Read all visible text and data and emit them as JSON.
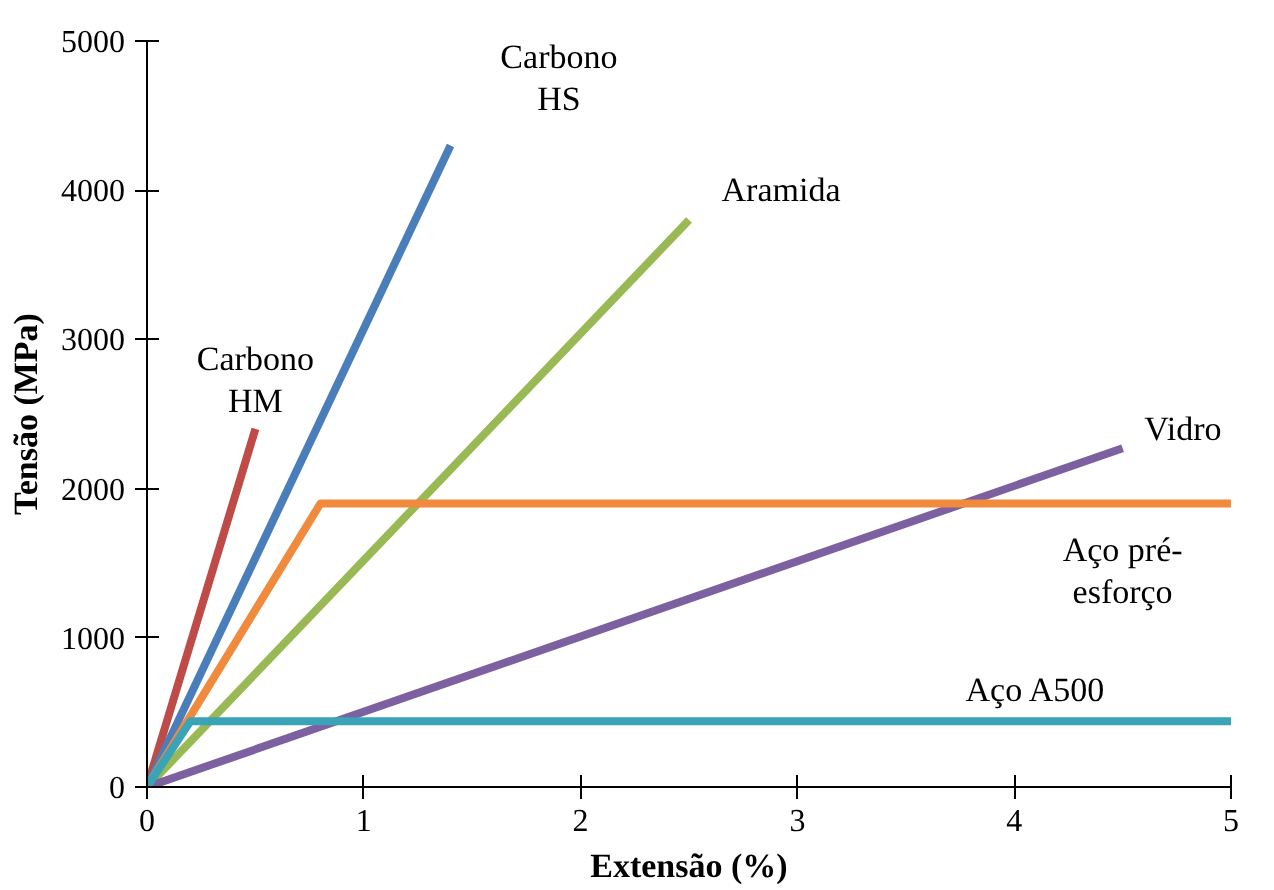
{
  "chart_data": {
    "type": "line",
    "xlabel": "Extensão (%)",
    "ylabel": "Tensão (MPa)",
    "xlim": [
      0,
      5
    ],
    "ylim": [
      0,
      5000
    ],
    "xticks": [
      0,
      1,
      2,
      3,
      4,
      5
    ],
    "yticks": [
      0,
      1000,
      2000,
      3000,
      4000,
      5000
    ],
    "grid": false,
    "legend": false,
    "marker": "none",
    "line_style": "solid",
    "series": [
      {
        "name": "Carbono\nHM",
        "color": "#be4b48",
        "x": [
          0,
          0.5
        ],
        "values": [
          0,
          2400
        ]
      },
      {
        "name": "Carbono\nHS",
        "color": "#4a7ebb",
        "x": [
          0,
          1.4
        ],
        "values": [
          0,
          4300
        ]
      },
      {
        "name": "Aramida",
        "color": "#98b954",
        "x": [
          0,
          2.5
        ],
        "values": [
          0,
          3800
        ]
      },
      {
        "name": "Vidro",
        "color": "#7d60a0",
        "x": [
          0,
          4.5
        ],
        "values": [
          0,
          2270
        ]
      },
      {
        "name": "Aço pré-\nesforço",
        "color": "#f08a3c",
        "x": [
          0,
          0.8,
          5
        ],
        "values": [
          0,
          1900,
          1900
        ]
      },
      {
        "name": "Aço A500",
        "color": "#3aa3b8",
        "x": [
          0,
          0.2,
          5
        ],
        "values": [
          0,
          440,
          440
        ]
      }
    ]
  }
}
